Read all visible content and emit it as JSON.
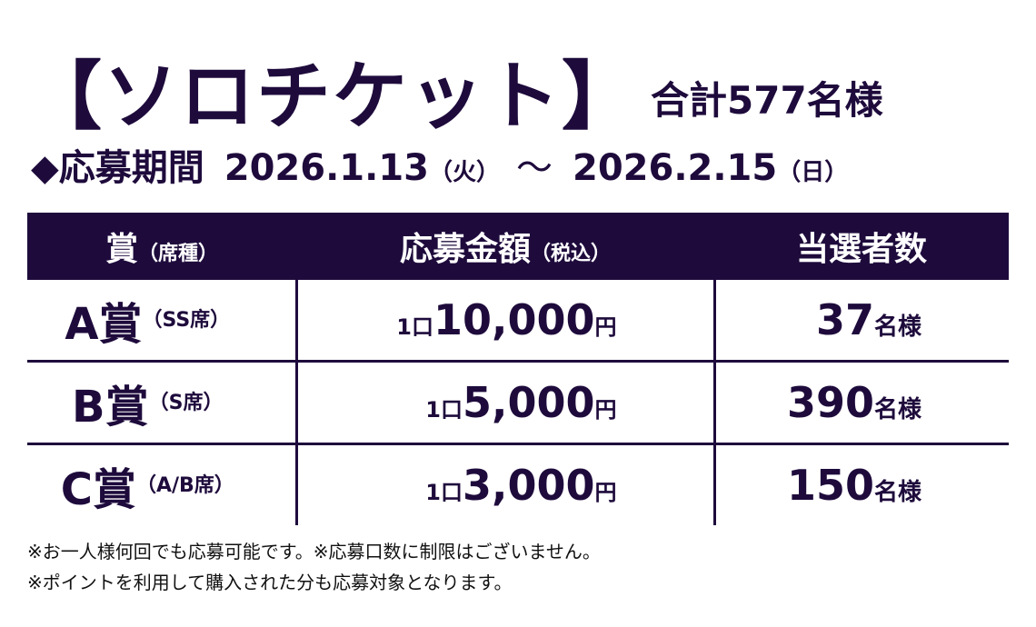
{
  "title": {
    "main": "【ソロチケット】",
    "sub": "合計577名様"
  },
  "period": {
    "label": "◆応募期間",
    "start_date": "2026.1.13",
    "start_day": "（火）",
    "separator": "〜",
    "end_date": "2026.2.15",
    "end_day": "（日）"
  },
  "table": {
    "headers": {
      "prize_main": "賞",
      "prize_sub": "（席種）",
      "amount_main": "応募金額",
      "amount_sub": "（税込）",
      "winners": "当選者数"
    },
    "rows": [
      {
        "prize": "A賞",
        "seat": "（SS席）",
        "unit": "1口",
        "amount": "10,000",
        "yen": "円",
        "winners": "37",
        "winners_unit": "名様"
      },
      {
        "prize": "B賞",
        "seat": "（S席）",
        "unit": "1口",
        "amount": "5,000",
        "yen": "円",
        "winners": "390",
        "winners_unit": "名様"
      },
      {
        "prize": "C賞",
        "seat": "（A/B席）",
        "unit": "1口",
        "amount": "3,000",
        "yen": "円",
        "winners": "150",
        "winners_unit": "名様"
      }
    ]
  },
  "notes": [
    "※お一人様何回でも応募可能です。※応募口数に制限はございません。",
    "※ポイントを利用して購入された分も応募対象となります。"
  ],
  "colors": {
    "primary": "#1e0b3c",
    "header_text": "#ffffff",
    "background": "#ffffff"
  }
}
